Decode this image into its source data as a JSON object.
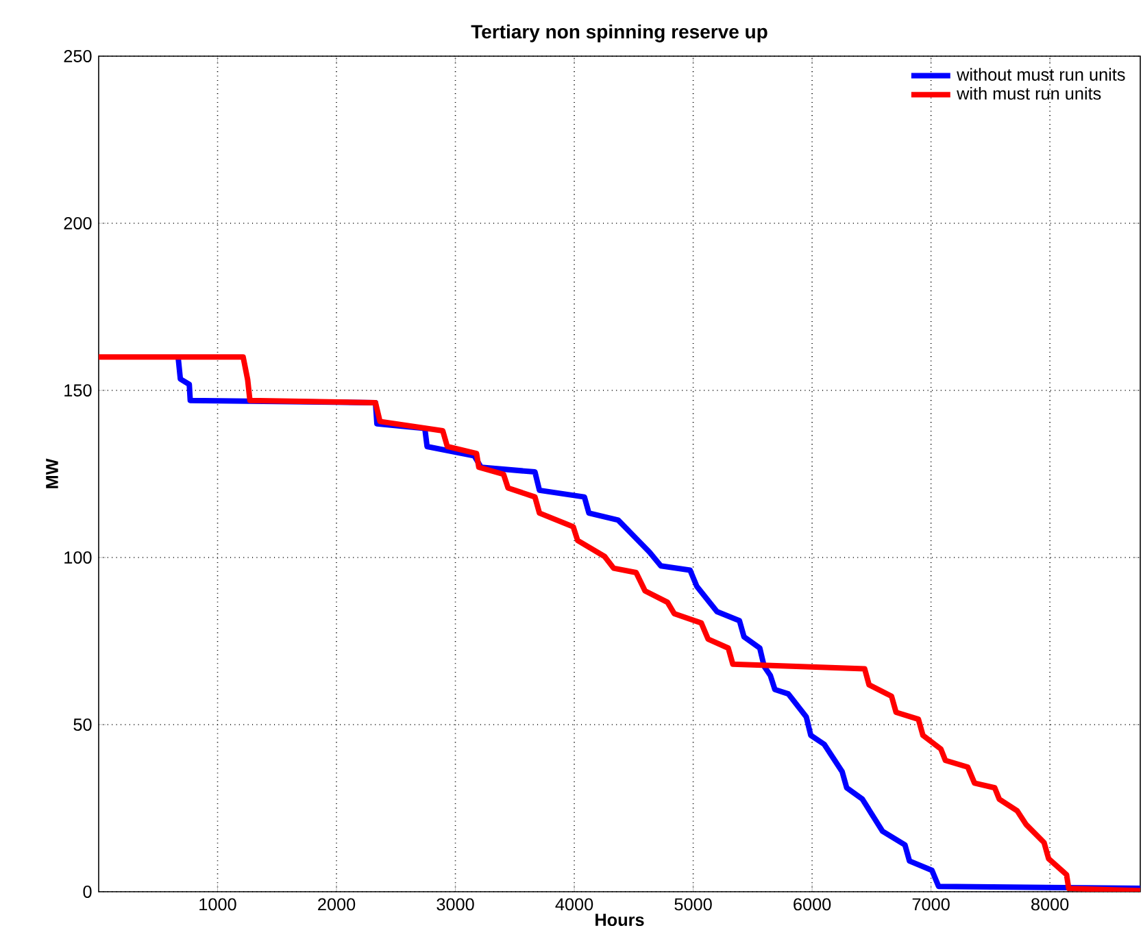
{
  "chart_data": {
    "type": "line",
    "title": "Tertiary non spinning reserve up",
    "xlabel": "Hours",
    "ylabel": "MW",
    "xlim": [
      0,
      8760
    ],
    "ylim": [
      0,
      250
    ],
    "xticks": [
      1000,
      2000,
      3000,
      4000,
      5000,
      6000,
      7000,
      8000
    ],
    "yticks": [
      0,
      50,
      100,
      150,
      200,
      250
    ],
    "grid": true,
    "legend": "top right",
    "marker": "none",
    "line_style": "solid",
    "series": [
      {
        "name": "without must run units",
        "color": "#0000ff",
        "x": [
          668,
          687,
          762,
          770,
          2328,
          2340,
          2743,
          2762,
          3159,
          3216,
          3669,
          3707,
          4085,
          4123,
          4369,
          4463,
          4633,
          4728,
          4974,
          5030,
          5200,
          5389,
          5427,
          5560,
          5597,
          5649,
          5687,
          5800,
          5951,
          5989,
          6102,
          6253,
          6291,
          6423,
          6592,
          6781,
          6819,
          7008,
          7064,
          8760
        ],
        "values": [
          160,
          153.4,
          151.8,
          147,
          146.3,
          140,
          138.6,
          133.2,
          130.4,
          127,
          125.6,
          120.1,
          118.1,
          113.3,
          111.2,
          107.8,
          101.6,
          97.5,
          96.2,
          91.4,
          83.8,
          81.1,
          76.3,
          72.9,
          67.4,
          64.7,
          60.5,
          59.2,
          52.3,
          46.8,
          44.1,
          35.9,
          31.1,
          27.7,
          18.1,
          14,
          9.2,
          6.4,
          1.6,
          1
        ]
      },
      {
        "name": "with must run units",
        "color": "#ff0000",
        "x": [
          0,
          1215,
          1253,
          1272,
          2328,
          2366,
          2894,
          2932,
          3178,
          3197,
          3405,
          3443,
          3669,
          3707,
          3991,
          4028,
          4255,
          4331,
          4520,
          4595,
          4784,
          4841,
          5068,
          5125,
          5295,
          5333,
          6442,
          6479,
          6668,
          6706,
          6894,
          6932,
          7083,
          7121,
          7309,
          7366,
          7536,
          7574,
          7725,
          7800,
          7951,
          7989,
          8140,
          8158,
          8760
        ],
        "values": [
          160,
          160,
          153.2,
          147,
          146.3,
          140.7,
          137.9,
          133.2,
          131.1,
          127,
          124.9,
          120.8,
          118.1,
          113.3,
          109.2,
          105.1,
          100.3,
          96.8,
          95.5,
          90,
          86.6,
          83.2,
          80.4,
          75.6,
          72.9,
          68.1,
          66.7,
          61.9,
          58.5,
          53.7,
          51.6,
          46.8,
          42.7,
          39.3,
          37.3,
          32.5,
          31.1,
          27.7,
          24.2,
          20.1,
          14.7,
          9.9,
          5.1,
          1,
          0.3
        ]
      }
    ]
  }
}
